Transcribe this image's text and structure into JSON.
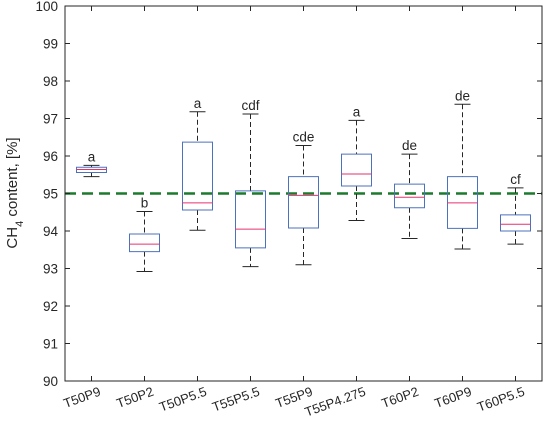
{
  "chart_data": {
    "type": "box",
    "title": "",
    "xlabel": "",
    "ylabel": {
      "prefix": "CH",
      "subscript": "4",
      "suffix": " content, [%]"
    },
    "ylim": [
      90,
      100
    ],
    "yticks": [
      90,
      91,
      92,
      93,
      94,
      95,
      96,
      97,
      98,
      99,
      100
    ],
    "grid": false,
    "categories": [
      "T50P9",
      "T50P2",
      "T50P5.5",
      "T55P5.5",
      "T55P9",
      "T55P4.275",
      "T60P2",
      "T60P9",
      "T60P5.5"
    ],
    "groups": [
      "a",
      "b",
      "a",
      "cdf",
      "cde",
      "a",
      "de",
      "de",
      "cf"
    ],
    "boxes": [
      {
        "min": 95.45,
        "q1": 95.56,
        "median": 95.64,
        "q3": 95.7,
        "max": 95.75
      },
      {
        "min": 92.92,
        "q1": 93.45,
        "median": 93.65,
        "q3": 93.92,
        "max": 94.52
      },
      {
        "min": 94.02,
        "q1": 94.56,
        "median": 94.75,
        "q3": 96.37,
        "max": 97.18
      },
      {
        "min": 93.05,
        "q1": 93.55,
        "median": 94.05,
        "q3": 95.07,
        "max": 97.12
      },
      {
        "min": 93.1,
        "q1": 94.08,
        "median": 94.95,
        "q3": 95.45,
        "max": 96.28
      },
      {
        "min": 94.28,
        "q1": 95.2,
        "median": 95.52,
        "q3": 96.05,
        "max": 96.95
      },
      {
        "min": 93.8,
        "q1": 94.62,
        "median": 94.9,
        "q3": 95.25,
        "max": 96.05
      },
      {
        "min": 93.52,
        "q1": 94.07,
        "median": 94.75,
        "q3": 95.45,
        "max": 97.38
      },
      {
        "min": 93.65,
        "q1": 94.0,
        "median": 94.18,
        "q3": 94.43,
        "max": 95.15
      }
    ],
    "reference_line": {
      "y": 95,
      "style": "dashed"
    },
    "colors": {
      "box": "#4d72bd",
      "median": "#e6306f",
      "whisker": "#262626",
      "reference": "#1c7a2e",
      "axis": "#262626"
    }
  }
}
